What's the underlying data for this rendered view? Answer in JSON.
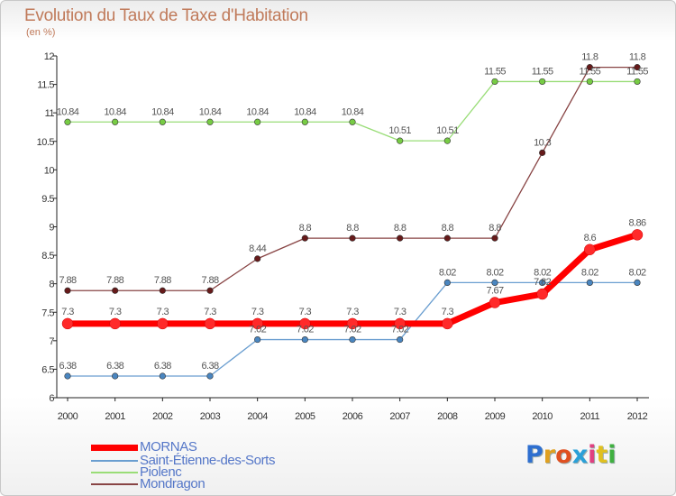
{
  "title": "Evolution du Taux de Taxe d'Habitation",
  "subtitle": "(en %)",
  "logo": {
    "text": "Proxiti",
    "letter_colors": [
      "#2e6fd0",
      "#e0a020",
      "#e05020",
      "#2aa0d8",
      "#e04080",
      "#e0c020",
      "#40b040"
    ]
  },
  "chart_data": {
    "type": "line",
    "title": "Evolution du Taux de Taxe d'Habitation",
    "ylabel": "(en %)",
    "x": [
      "2000",
      "2001",
      "2002",
      "2003",
      "2004",
      "2005",
      "2006",
      "2007",
      "2008",
      "2009",
      "2010",
      "2011",
      "2012"
    ],
    "ylim": [
      6,
      12
    ],
    "yticks": [
      "6",
      "6.5",
      "7",
      "7.5",
      "8",
      "8.5",
      "9",
      "9.5",
      "10",
      "10.5",
      "11",
      "11.5",
      "12"
    ],
    "grid": false,
    "legend_position": "bottom-left",
    "series": [
      {
        "name": "MORNAS",
        "color": "#ff0000",
        "marker_color": "#ff2a2a",
        "values": [
          7.3,
          7.3,
          7.3,
          7.3,
          7.3,
          7.3,
          7.3,
          7.3,
          7.3,
          7.67,
          7.82,
          8.6,
          8.86
        ],
        "labels": [
          "7.3",
          "7.3",
          "7.3",
          "7.3",
          "7.3",
          "7.3",
          "7.3",
          "7.3",
          "7.3",
          "7.67",
          "7.82",
          "8.6",
          "8.86"
        ]
      },
      {
        "name": "Saint-Étienne-des-Sorts",
        "color": "#6a9ed0",
        "marker_color": "#4a86c0",
        "values": [
          6.38,
          6.38,
          6.38,
          6.38,
          7.02,
          7.02,
          7.02,
          7.02,
          8.02,
          8.02,
          8.02,
          8.02,
          8.02
        ],
        "labels": [
          "6.38",
          "6.38",
          "6.38",
          "6.38",
          "7.02",
          "7.02",
          "7.02",
          "7.02",
          "8.02",
          "8.02",
          "8.02",
          "8.02",
          "8.02"
        ]
      },
      {
        "name": "Piolenc",
        "color": "#99dd77",
        "marker_color": "#77cc44",
        "values": [
          10.84,
          10.84,
          10.84,
          10.84,
          10.84,
          10.84,
          10.84,
          10.51,
          10.51,
          11.55,
          11.55,
          11.55,
          11.55
        ],
        "labels": [
          "10.84",
          "10.84",
          "10.84",
          "10.84",
          "10.84",
          "10.84",
          "10.84",
          "10.51",
          "10.51",
          "11.55",
          "11.55",
          "11.55",
          "11.55"
        ]
      },
      {
        "name": "Mondragon",
        "color": "#884444",
        "marker_color": "#661a1a",
        "values": [
          7.88,
          7.88,
          7.88,
          7.88,
          8.44,
          8.8,
          8.8,
          8.8,
          8.8,
          8.8,
          10.3,
          11.8,
          11.8
        ],
        "labels": [
          "7.88",
          "7.88",
          "7.88",
          "7.88",
          "8.44",
          "8.8",
          "8.8",
          "8.8",
          "8.8",
          "8.8",
          "10.3",
          "11.8",
          "11.8"
        ]
      }
    ]
  }
}
